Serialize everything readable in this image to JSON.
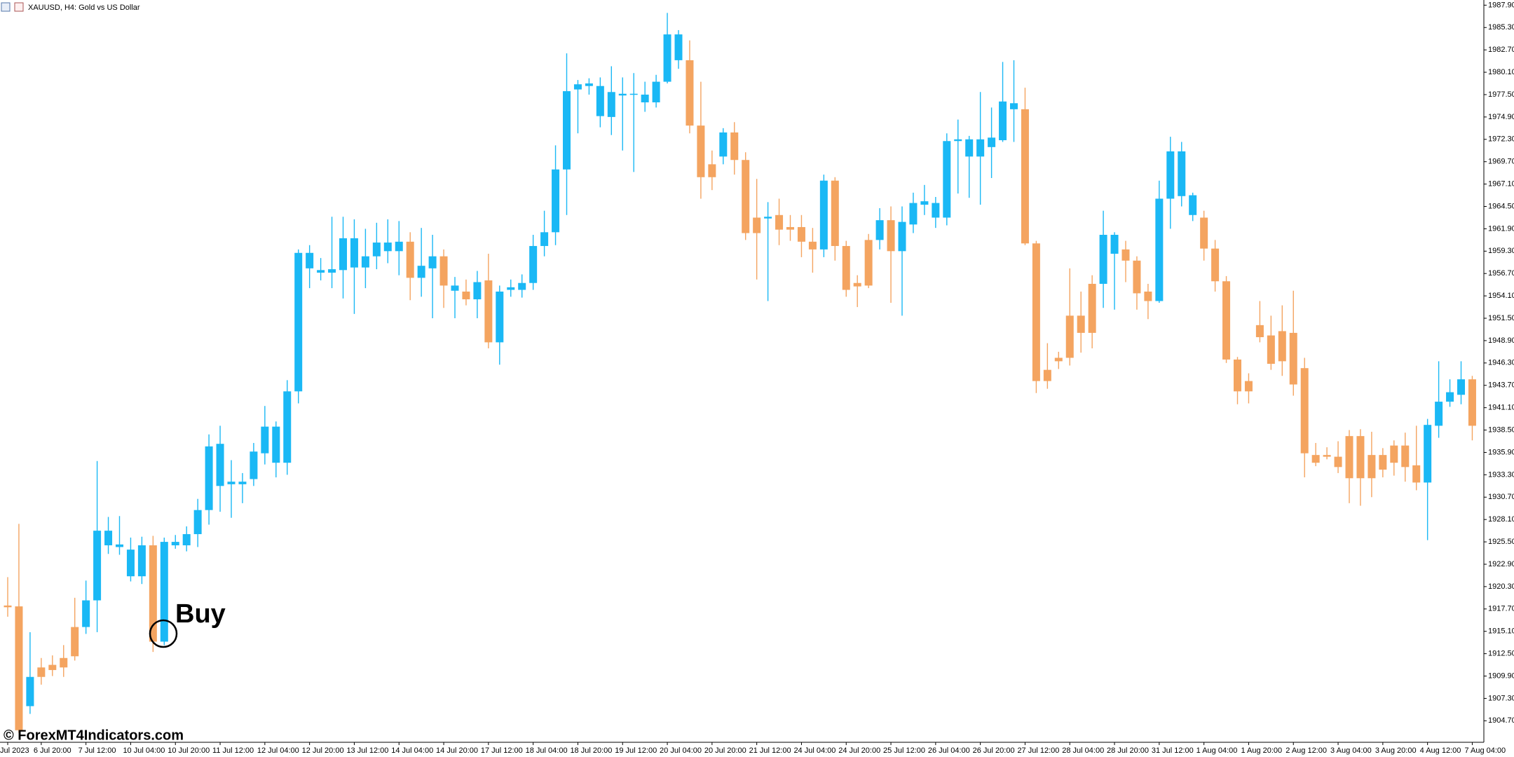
{
  "chart_data": {
    "type": "candlestick",
    "title": "XAUUSD, H4: Gold vs US Dollar",
    "annotation": "Buy",
    "watermark": "© ForexMT4Indicators.com",
    "up_color": "#1ab8f5",
    "down_color": "#f4a460",
    "categories": [
      "Jul 2023",
      null,
      null,
      "6 Jul 20:00",
      null,
      null,
      null,
      "7 Jul 12:00",
      null,
      null,
      null,
      "10 Jul 04:00",
      null,
      null,
      null,
      "10 Jul 20:00",
      null,
      null,
      null,
      "11 Jul 12:00",
      null,
      null,
      null,
      "12 Jul 04:00",
      null,
      null,
      null,
      "12 Jul 20:00",
      null,
      null,
      null,
      "13 Jul 12:00",
      null,
      null,
      null,
      "14 Jul 04:00",
      null,
      null,
      null,
      "14 Jul 20:00",
      null,
      null,
      null,
      "17 Jul 12:00",
      null,
      null,
      null,
      "18 Jul 04:00",
      null,
      null,
      null,
      "18 Jul 20:00",
      null,
      null,
      null,
      "19 Jul 12:00",
      null,
      null,
      null,
      "20 Jul 04:00",
      null,
      null,
      null,
      "20 Jul 20:00",
      null,
      null,
      null,
      "21 Jul 12:00",
      null,
      null,
      null,
      "24 Jul 04:00",
      null,
      null,
      null,
      "24 Jul 20:00",
      null,
      null,
      null,
      "25 Jul 12:00",
      null,
      null,
      null,
      "26 Jul 04:00",
      null,
      null,
      null,
      "26 Jul 20:00",
      null,
      null,
      null,
      "27 Jul 12:00",
      null,
      null,
      null,
      "28 Jul 04:00",
      null,
      null,
      null,
      "28 Jul 20:00",
      null,
      null,
      null,
      "31 Jul 12:00",
      null,
      null,
      null,
      "1 Aug 04:00",
      null,
      null,
      null,
      "1 Aug 20:00",
      null,
      null,
      null,
      "2 Aug 12:00",
      null,
      null,
      null,
      "3 Aug 04:00",
      null,
      null,
      null,
      "3 Aug 20:00",
      null,
      null,
      null,
      "4 Aug 12:00",
      null,
      null,
      null,
      "7 Aug 04:00"
    ],
    "open": [
      1918.1,
      1918.0,
      1906.4,
      1910.9,
      1911.2,
      1912.0,
      1915.6,
      1915.6,
      1918.7,
      1925.1,
      1924.9,
      1921.5,
      1921.5,
      1925.1,
      1913.9,
      1925.1,
      1925.1,
      1926.4,
      1929.2,
      1932.0,
      1932.2,
      1932.2,
      1932.8,
      1935.8,
      1934.7,
      1934.7,
      1943.0,
      1957.3,
      1956.8,
      1956.8,
      1957.1,
      1957.4,
      1957.4,
      1958.7,
      1959.3,
      1959.3,
      1960.4,
      1956.2,
      1957.3,
      1958.7,
      1954.7,
      1954.6,
      1953.7,
      1955.9,
      1948.7,
      1954.8,
      1954.8,
      1955.6,
      1959.9,
      1961.5,
      1968.8,
      1978.1,
      1978.5,
      1975.0,
      1974.9,
      1977.4,
      1977.5,
      1976.6,
      1976.6,
      1979.0,
      1981.5,
      1981.5,
      1973.9,
      1969.4,
      1970.3,
      1973.1,
      1969.9,
      1963.2,
      1963.1,
      1963.5,
      1962.1,
      1962.1,
      1960.4,
      1959.5,
      1967.5,
      1959.9,
      1955.6,
      1960.6,
      1960.6,
      1962.9,
      1959.3,
      1962.4,
      1964.7,
      1963.2,
      1963.2,
      1972.1,
      1970.3,
      1970.3,
      1971.4,
      1972.2,
      1975.8,
      1975.8,
      1960.2,
      1945.5,
      1946.9,
      1951.8,
      1951.8,
      1955.5,
      1955.5,
      1959.0,
      1959.5,
      1958.2,
      1954.6,
      1953.5,
      1965.4,
      1965.7,
      1963.5,
      1963.2,
      1959.6,
      1955.8,
      1946.7,
      1944.2,
      1950.7,
      1949.5,
      1950.0,
      1949.8,
      1945.7,
      1935.6,
      1935.6,
      1935.4,
      1937.8,
      1937.8,
      1935.6,
      1935.6,
      1936.7,
      1936.7,
      1934.4,
      1932.4,
      1939.0,
      1941.8,
      1942.6,
      1944.4
    ],
    "high": [
      1921.4,
      1927.6,
      1915.0,
      1912.0,
      1912.3,
      1913.5,
      1919.0,
      1921.0,
      1934.9,
      1928.4,
      1928.5,
      1926.0,
      1926.1,
      1926.2,
      1926.0,
      1926.3,
      1927.3,
      1930.5,
      1938.0,
      1939.0,
      1935.0,
      1933.5,
      1937.0,
      1941.3,
      1939.5,
      1944.3,
      1959.5,
      1960.0,
      1958.5,
      1963.3,
      1963.3,
      1963.0,
      1961.9,
      1962.6,
      1963.0,
      1962.8,
      1961.5,
      1962.0,
      1961.2,
      1959.5,
      1956.3,
      1956.0,
      1957.0,
      1959.0,
      1955.3,
      1956.0,
      1956.6,
      1961.2,
      1964.0,
      1971.6,
      1982.3,
      1979.2,
      1979.4,
      1979.5,
      1980.8,
      1979.5,
      1980.0,
      1979.0,
      1979.8,
      1987.0,
      1985.0,
      1983.8,
      1979.0,
      1971.0,
      1973.6,
      1974.3,
      1970.8,
      1967.7,
      1965.0,
      1965.4,
      1963.5,
      1963.5,
      1962.0,
      1968.2,
      1967.9,
      1960.5,
      1956.5,
      1961.3,
      1964.3,
      1964.5,
      1964.5,
      1966.1,
      1967.0,
      1965.6,
      1973.0,
      1974.6,
      1972.7,
      1977.8,
      1976.0,
      1981.3,
      1981.5,
      1978.3,
      1960.5,
      1948.6,
      1947.6,
      1957.3,
      1954.6,
      1956.5,
      1964.0,
      1961.5,
      1960.5,
      1958.7,
      1955.5,
      1967.5,
      1972.6,
      1972.0,
      1966.1,
      1964.0,
      1960.6,
      1956.4,
      1947.0,
      1945.1,
      1953.5,
      1951.8,
      1953.0,
      1954.7,
      1946.9,
      1937.0,
      1936.5,
      1937.2,
      1938.5,
      1938.6,
      1938.3,
      1936.4,
      1937.3,
      1938.2,
      1939.0,
      1939.8,
      1946.5,
      1944.4,
      1946.5,
      1944.8
    ],
    "low": [
      1916.8,
      1903.3,
      1905.5,
      1908.9,
      1909.9,
      1909.8,
      1911.7,
      1914.8,
      1915.0,
      1924.1,
      1924.0,
      1920.9,
      1920.6,
      1912.7,
      1913.5,
      1924.7,
      1924.4,
      1924.9,
      1927.5,
      1929.0,
      1928.3,
      1930.0,
      1932.0,
      1934.5,
      1933.0,
      1933.3,
      1941.6,
      1955.0,
      1955.9,
      1955.0,
      1953.8,
      1952.0,
      1955.0,
      1957.2,
      1957.9,
      1956.5,
      1953.6,
      1954.0,
      1951.5,
      1952.7,
      1951.5,
      1953.0,
      1951.5,
      1948.0,
      1946.1,
      1954.0,
      1953.9,
      1954.8,
      1958.7,
      1960.0,
      1963.5,
      1973.0,
      1977.5,
      1973.7,
      1972.8,
      1971.0,
      1968.5,
      1975.5,
      1976.0,
      1978.8,
      1980.5,
      1973.0,
      1965.4,
      1966.4,
      1969.4,
      1968.2,
      1960.6,
      1956.0,
      1953.5,
      1960.0,
      1960.5,
      1958.6,
      1956.8,
      1958.6,
      1958.2,
      1954.0,
      1952.8,
      1955.0,
      1959.5,
      1953.3,
      1951.8,
      1961.4,
      1963.5,
      1962.0,
      1962.3,
      1966.0,
      1965.5,
      1964.7,
      1967.8,
      1972.0,
      1972.0,
      1960.0,
      1942.8,
      1943.3,
      1945.6,
      1946.0,
      1947.5,
      1948.0,
      1952.7,
      1952.5,
      1955.7,
      1952.5,
      1951.4,
      1953.3,
      1961.9,
      1964.5,
      1962.8,
      1958.2,
      1954.6,
      1946.3,
      1941.5,
      1941.6,
      1948.7,
      1945.5,
      1944.8,
      1942.5,
      1933.0,
      1934.3,
      1935.1,
      1933.5,
      1930.0,
      1929.7,
      1930.7,
      1933.0,
      1933.2,
      1932.5,
      1931.5,
      1925.7,
      1937.6,
      1941.2,
      1941.5,
      1937.3
    ],
    "close": [
      1917.9,
      1903.6,
      1909.8,
      1909.8,
      1910.6,
      1910.9,
      1912.2,
      1918.7,
      1926.8,
      1926.8,
      1925.2,
      1924.6,
      1925.1,
      1913.9,
      1925.5,
      1925.5,
      1926.4,
      1929.2,
      1936.6,
      1936.9,
      1932.5,
      1932.5,
      1936.0,
      1938.9,
      1938.9,
      1943.0,
      1959.1,
      1959.1,
      1957.1,
      1957.2,
      1960.8,
      1960.8,
      1958.7,
      1960.3,
      1960.3,
      1960.4,
      1956.2,
      1957.6,
      1958.7,
      1955.3,
      1955.3,
      1953.7,
      1955.7,
      1948.7,
      1954.6,
      1955.1,
      1955.6,
      1959.9,
      1961.5,
      1968.8,
      1977.9,
      1978.7,
      1978.8,
      1978.5,
      1977.8,
      1977.6,
      1977.6,
      1977.5,
      1979.0,
      1984.5,
      1984.5,
      1973.9,
      1967.9,
      1967.9,
      1973.1,
      1969.9,
      1961.4,
      1961.4,
      1963.3,
      1961.8,
      1961.8,
      1960.4,
      1959.5,
      1967.5,
      1959.9,
      1954.8,
      1955.2,
      1955.3,
      1962.9,
      1959.3,
      1962.7,
      1964.9,
      1965.1,
      1964.9,
      1972.1,
      1972.3,
      1972.3,
      1972.3,
      1972.5,
      1976.7,
      1976.5,
      1960.2,
      1944.2,
      1944.2,
      1946.5,
      1946.9,
      1949.8,
      1949.8,
      1961.2,
      1961.2,
      1958.2,
      1954.4,
      1953.5,
      1965.4,
      1970.9,
      1970.9,
      1965.8,
      1959.6,
      1955.8,
      1946.7,
      1943.0,
      1943.0,
      1949.3,
      1946.2,
      1946.5,
      1943.8,
      1935.8,
      1934.7,
      1935.4,
      1934.2,
      1932.9,
      1932.9,
      1932.9,
      1933.9,
      1934.7,
      1934.2,
      1932.4,
      1939.1,
      1941.8,
      1942.9,
      1944.4,
      1939.0
    ],
    "ylim": [
      1902.2,
      1988.5
    ],
    "yticks": [
      {
        "value": 1904.7,
        "label": "1904.70"
      },
      {
        "value": 1907.3,
        "label": "1907.30"
      },
      {
        "value": 1909.9,
        "label": "1909.90"
      },
      {
        "value": 1912.5,
        "label": "1912.50"
      },
      {
        "value": 1915.1,
        "label": "1915.10"
      },
      {
        "value": 1917.7,
        "label": "1917.70"
      },
      {
        "value": 1920.3,
        "label": "1920.30"
      },
      {
        "value": 1922.9,
        "label": "1922.90"
      },
      {
        "value": 1925.5,
        "label": "1925.50"
      },
      {
        "value": 1928.1,
        "label": "1928.10"
      },
      {
        "value": 1930.7,
        "label": "1930.70"
      },
      {
        "value": 1933.3,
        "label": "1933.30"
      },
      {
        "value": 1935.9,
        "label": "1935.90"
      },
      {
        "value": 1938.5,
        "label": "1938.50"
      },
      {
        "value": 1941.1,
        "label": "1941.10"
      },
      {
        "value": 1943.7,
        "label": "1943.70"
      },
      {
        "value": 1946.3,
        "label": "1946.30"
      },
      {
        "value": 1948.9,
        "label": "1948.90"
      },
      {
        "value": 1951.5,
        "label": "1951.50"
      },
      {
        "value": 1954.1,
        "label": "1954.10"
      },
      {
        "value": 1956.7,
        "label": "1956.70"
      },
      {
        "value": 1959.3,
        "label": "1959.30"
      },
      {
        "value": 1961.9,
        "label": "1961.90"
      },
      {
        "value": 1964.5,
        "label": "1964.50"
      },
      {
        "value": 1967.1,
        "label": "1967.10"
      },
      {
        "value": 1969.7,
        "label": "1969.70"
      },
      {
        "value": 1972.3,
        "label": "1972.30"
      },
      {
        "value": 1974.9,
        "label": "1974.90"
      },
      {
        "value": 1977.5,
        "label": "1977.50"
      },
      {
        "value": 1980.1,
        "label": "1980.10"
      },
      {
        "value": 1982.7,
        "label": "1982.70"
      },
      {
        "value": 1985.3,
        "label": "1985.30"
      },
      {
        "value": 1987.9,
        "label": "1987.90"
      }
    ],
    "grid": false
  }
}
